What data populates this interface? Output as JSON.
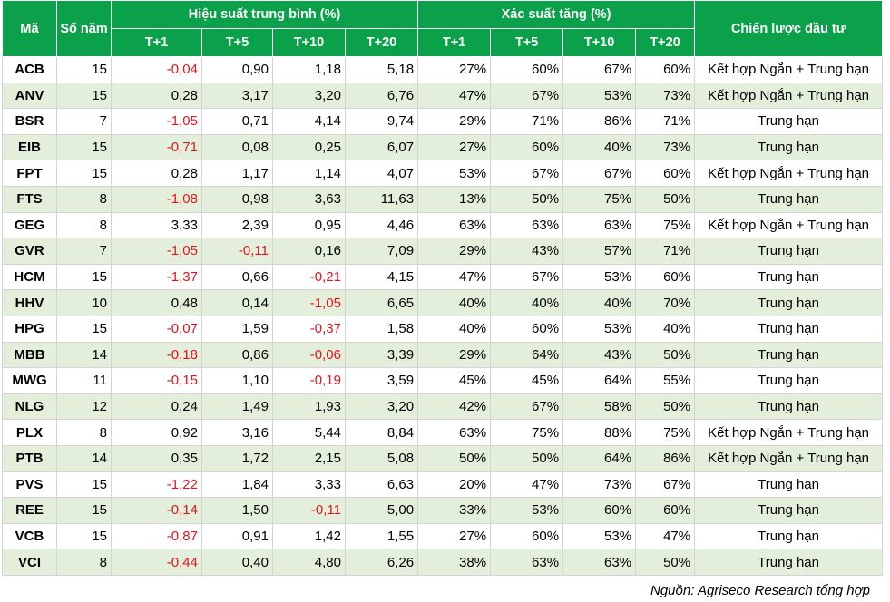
{
  "header": {
    "code": "Mã",
    "years": "Số năm",
    "perf_title": "Hiệu suất trung bình (%)",
    "prob_title": "Xác suất tăng (%)",
    "strategy": "Chiến lược đầu tư",
    "perf_cols": [
      "T+1",
      "T+5",
      "T+10",
      "T+20"
    ],
    "prob_cols": [
      "T+1",
      "T+5",
      "T+10",
      "T+20"
    ]
  },
  "rows": [
    [
      "ACB",
      "15",
      "-0,04",
      "0,90",
      "1,18",
      "5,18",
      "27%",
      "60%",
      "67%",
      "60%",
      "Kết hợp Ngắn + Trung hạn"
    ],
    [
      "ANV",
      "15",
      "0,28",
      "3,17",
      "3,20",
      "6,76",
      "47%",
      "67%",
      "53%",
      "73%",
      "Kết hợp Ngắn + Trung hạn"
    ],
    [
      "BSR",
      "7",
      "-1,05",
      "0,71",
      "4,14",
      "9,74",
      "29%",
      "71%",
      "86%",
      "71%",
      "Trung hạn"
    ],
    [
      "EIB",
      "15",
      "-0,71",
      "0,08",
      "0,25",
      "6,07",
      "27%",
      "60%",
      "40%",
      "73%",
      "Trung hạn"
    ],
    [
      "FPT",
      "15",
      "0,28",
      "1,17",
      "1,14",
      "4,07",
      "53%",
      "67%",
      "67%",
      "60%",
      "Kết hợp Ngắn + Trung hạn"
    ],
    [
      "FTS",
      "8",
      "-1,08",
      "0,98",
      "3,63",
      "11,63",
      "13%",
      "50%",
      "75%",
      "50%",
      "Trung hạn"
    ],
    [
      "GEG",
      "8",
      "3,33",
      "2,39",
      "0,95",
      "4,46",
      "63%",
      "63%",
      "63%",
      "75%",
      "Kết hợp Ngắn + Trung hạn"
    ],
    [
      "GVR",
      "7",
      "-1,05",
      "-0,11",
      "0,16",
      "7,09",
      "29%",
      "43%",
      "57%",
      "71%",
      "Trung hạn"
    ],
    [
      "HCM",
      "15",
      "-1,37",
      "0,66",
      "-0,21",
      "4,15",
      "47%",
      "67%",
      "53%",
      "60%",
      "Trung hạn"
    ],
    [
      "HHV",
      "10",
      "0,48",
      "0,14",
      "-1,05",
      "6,65",
      "40%",
      "40%",
      "40%",
      "70%",
      "Trung hạn"
    ],
    [
      "HPG",
      "15",
      "-0,07",
      "1,59",
      "-0,37",
      "1,58",
      "40%",
      "60%",
      "53%",
      "40%",
      "Trung hạn"
    ],
    [
      "MBB",
      "14",
      "-0,18",
      "0,86",
      "-0,06",
      "3,39",
      "29%",
      "64%",
      "43%",
      "50%",
      "Trung hạn"
    ],
    [
      "MWG",
      "11",
      "-0,15",
      "1,10",
      "-0,19",
      "3,59",
      "45%",
      "45%",
      "64%",
      "55%",
      "Trung hạn"
    ],
    [
      "NLG",
      "12",
      "0,24",
      "1,49",
      "1,93",
      "3,20",
      "42%",
      "67%",
      "58%",
      "50%",
      "Trung hạn"
    ],
    [
      "PLX",
      "8",
      "0,92",
      "3,16",
      "5,44",
      "8,84",
      "63%",
      "75%",
      "88%",
      "75%",
      "Kết hợp Ngắn + Trung hạn"
    ],
    [
      "PTB",
      "14",
      "0,35",
      "1,72",
      "2,15",
      "5,08",
      "50%",
      "50%",
      "64%",
      "86%",
      "Kết hợp Ngắn + Trung hạn"
    ],
    [
      "PVS",
      "15",
      "-1,22",
      "1,84",
      "3,33",
      "6,63",
      "20%",
      "47%",
      "73%",
      "67%",
      "Trung hạn"
    ],
    [
      "REE",
      "15",
      "-0,14",
      "1,50",
      "-0,11",
      "5,00",
      "33%",
      "53%",
      "60%",
      "60%",
      "Trung hạn"
    ],
    [
      "VCB",
      "15",
      "-0,87",
      "0,91",
      "1,42",
      "1,55",
      "27%",
      "60%",
      "53%",
      "47%",
      "Trung hạn"
    ],
    [
      "VCI",
      "8",
      "-0,44",
      "0,40",
      "4,80",
      "6,26",
      "38%",
      "63%",
      "63%",
      "50%",
      "Trung hạn"
    ]
  ],
  "source": "Nguồn: Agriseco Research tổng hợp"
}
